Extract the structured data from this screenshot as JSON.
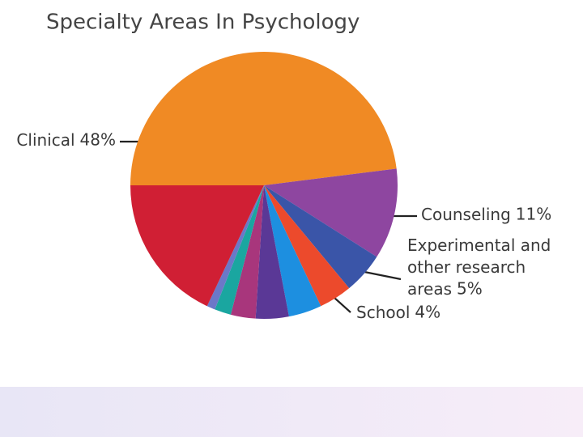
{
  "chart_data": {
    "type": "pie",
    "title": "Specialty Areas In Psychology",
    "categories": [
      "Clinical",
      "Counseling",
      "Experimental and other research areas",
      "School",
      null,
      null,
      null,
      null,
      null,
      null
    ],
    "values": [
      48,
      11,
      5,
      4,
      4,
      4,
      3,
      2,
      1,
      18
    ],
    "value_labels": [
      "48%",
      "11%",
      "5%",
      "4%",
      null,
      null,
      null,
      null,
      null,
      null
    ],
    "colors": [
      "#f08a24",
      "#8e46a0",
      "#3a55a8",
      "#ec4a2c",
      "#1d8fe0",
      "#5a3896",
      "#a8367c",
      "#1aa6a0",
      "#6b78c8",
      "#d01f34"
    ]
  }
}
